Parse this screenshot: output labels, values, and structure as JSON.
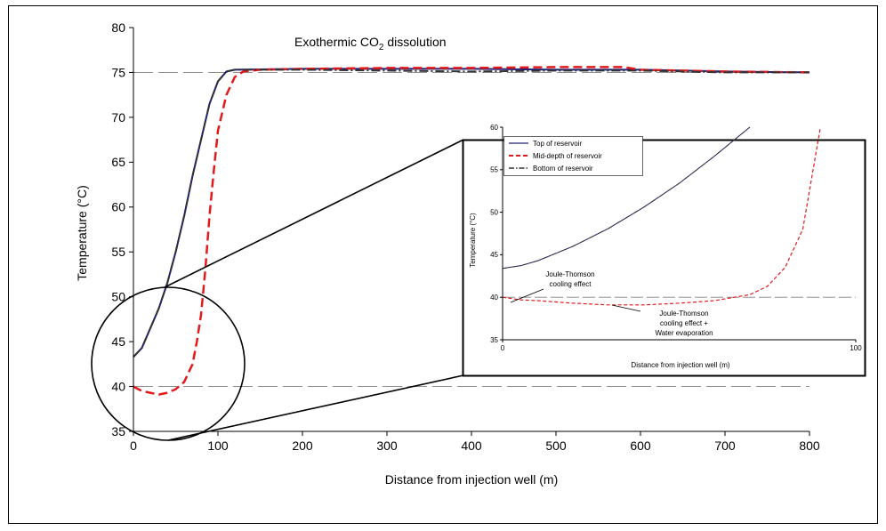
{
  "chart_data": [
    {
      "type": "line",
      "title": "Exothermic CO₂ dissolution",
      "title_main": "Exothermic CO",
      "title_sub": "2",
      "title_tail": " dissolution",
      "xlabel": "Distance from injection well (m)",
      "ylabel": "Temperature (°C)",
      "xlim": [
        0,
        800
      ],
      "ylim": [
        35,
        80
      ],
      "x_ticks": [
        0,
        100,
        200,
        300,
        400,
        500,
        600,
        700,
        800
      ],
      "y_ticks": [
        35,
        40,
        45,
        50,
        55,
        60,
        65,
        70,
        75,
        80
      ],
      "grid": false,
      "reference_lines": [
        {
          "y": 40
        },
        {
          "y": 75
        }
      ],
      "series": [
        {
          "color": "#1f1f7a",
          "style": "solid",
          "x": [
            0,
            10,
            20,
            30,
            40,
            50,
            60,
            70,
            80,
            90,
            100,
            110,
            115,
            120,
            200,
            300,
            400,
            500,
            600,
            700,
            800
          ],
          "y": [
            43.3,
            44.3,
            46.5,
            48.7,
            51.5,
            55,
            59,
            63.5,
            67.5,
            71.5,
            74,
            75.1,
            75.2,
            75.3,
            75.4,
            75.4,
            75.4,
            75.3,
            75.3,
            75.1,
            75
          ]
        },
        {
          "color": "#e31a1c",
          "style": "dashed",
          "x": [
            0,
            10,
            20,
            30,
            40,
            50,
            60,
            70,
            75,
            80,
            85,
            90,
            95,
            100,
            110,
            120,
            130,
            150,
            200,
            300,
            400,
            500,
            580,
            600,
            700,
            800
          ],
          "y": [
            40,
            39.5,
            39.3,
            39.1,
            39.3,
            39.7,
            40.5,
            42.5,
            45,
            48,
            53,
            59,
            64,
            68.5,
            72.5,
            74.5,
            75.1,
            75.3,
            75.4,
            75.5,
            75.5,
            75.6,
            75.6,
            75.3,
            75.1,
            75
          ]
        },
        {
          "color": "#333333",
          "style": "dashdot",
          "x": [
            0,
            10,
            20,
            30,
            40,
            50,
            60,
            70,
            80,
            90,
            100,
            110,
            115,
            120,
            200,
            300,
            400,
            500,
            600,
            700,
            800
          ],
          "y": [
            43.3,
            44.3,
            46.5,
            48.7,
            51.5,
            55,
            59,
            63.5,
            67.5,
            71.5,
            74,
            75.1,
            75.2,
            75.3,
            75.3,
            75.2,
            75.1,
            75.2,
            75.2,
            75,
            75
          ]
        }
      ]
    },
    {
      "type": "line",
      "xlabel": "Distance from injection well (m)",
      "ylabel": "Temperature (°C)",
      "xlim": [
        0,
        100
      ],
      "ylim": [
        35,
        60
      ],
      "x_ticks": [
        0,
        100
      ],
      "y_ticks": [
        35,
        40,
        45,
        50,
        55,
        60
      ],
      "grid": false,
      "legend_position": "top-left",
      "reference_lines": [
        {
          "y": 40
        }
      ],
      "annotations": [
        {
          "lines": [
            "Joule-Thomson",
            "cooling effect"
          ]
        },
        {
          "lines": [
            "Joule-Thomson",
            "cooling effect +",
            "Water evaporation"
          ]
        }
      ],
      "series": [
        {
          "name": "Top of reservoir",
          "color": "#1f1f7a",
          "style": "solid",
          "x": [
            0,
            5,
            10,
            20,
            30,
            40,
            50,
            60,
            70
          ],
          "y": [
            43.4,
            43.7,
            44.3,
            46,
            48.1,
            50.6,
            53.4,
            56.6,
            60
          ]
        },
        {
          "name": "Mid-depth of reservoir",
          "color": "#e31a1c",
          "style": "dashed",
          "x": [
            0,
            5,
            10,
            20,
            30,
            40,
            50,
            60,
            70,
            75,
            80,
            85,
            90
          ],
          "y": [
            40,
            39.7,
            39.6,
            39.3,
            39.1,
            39.1,
            39.3,
            39.6,
            40.3,
            41.3,
            43.5,
            48,
            60
          ]
        },
        {
          "name": "Bottom of reservoir",
          "color": "#333333",
          "style": "dashdot",
          "x": [
            0,
            5,
            10,
            20,
            30,
            40,
            50,
            60,
            70
          ],
          "y": [
            43.4,
            43.7,
            44.3,
            46,
            48.1,
            50.6,
            53.4,
            56.6,
            60
          ]
        }
      ]
    }
  ]
}
